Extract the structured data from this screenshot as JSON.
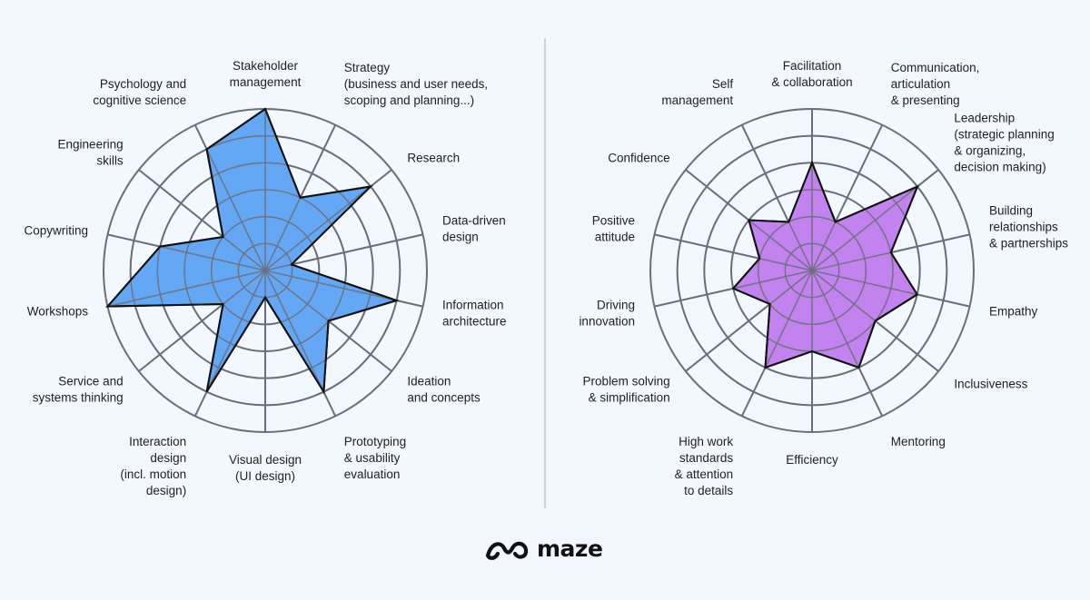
{
  "brand": {
    "name": "maze",
    "logo_icon": "maze-logo-icon"
  },
  "colors": {
    "background": "#f3f7fe",
    "grid": "#6b6f7a",
    "divider": "#a9abb2",
    "left_fill": "#64a8f5",
    "right_fill": "#c283ee",
    "outline": "#111111"
  },
  "chart_data": [
    {
      "type": "radar",
      "title": "",
      "rings": 6,
      "max": 6,
      "categories": [
        [
          "Stakeholder",
          "management"
        ],
        [
          "Strategy",
          "(business and user needs,",
          "scoping and planning...)"
        ],
        [
          "Research"
        ],
        [
          "Data-driven",
          "design"
        ],
        [
          "Information",
          "architecture"
        ],
        [
          "Ideation",
          "and concepts"
        ],
        [
          "Prototyping",
          "& usability",
          "evaluation"
        ],
        [
          "Visual design",
          "(UI design)"
        ],
        [
          "Interaction",
          "design",
          "(incl. motion",
          "design)"
        ],
        [
          "Service and",
          "systems thinking"
        ],
        [
          "Workshops"
        ],
        [
          "Copywriting"
        ],
        [
          "Engineering",
          "skills"
        ],
        [
          "Psychology and",
          "cognitive science"
        ]
      ],
      "values": [
        6,
        3,
        5,
        1,
        5,
        3,
        5,
        1,
        5,
        2,
        6,
        4,
        2,
        5
      ]
    },
    {
      "type": "radar",
      "title": "",
      "rings": 6,
      "max": 6,
      "categories": [
        [
          "Facilitation",
          "& collaboration"
        ],
        [
          "Communication,",
          "articulation",
          "& presenting"
        ],
        [
          "Leadership",
          "(strategic planning",
          "& organizing,",
          "decision making)"
        ],
        [
          "Building",
          "relationships",
          "& partnerships"
        ],
        [
          "Empathy"
        ],
        [
          "Inclusiveness"
        ],
        [
          "Mentoring"
        ],
        [
          "Efficiency"
        ],
        [
          "High work",
          "standards",
          "& attention",
          "to details"
        ],
        [
          "Problem solving",
          "& simplification"
        ],
        [
          "Driving",
          "innovation"
        ],
        [
          "Positive",
          "attitude"
        ],
        [
          "Confidence"
        ],
        [
          "Self",
          "management"
        ]
      ],
      "values": [
        4,
        2,
        5,
        3,
        4,
        3,
        4,
        3,
        4,
        2,
        3,
        2,
        3,
        2
      ]
    }
  ]
}
